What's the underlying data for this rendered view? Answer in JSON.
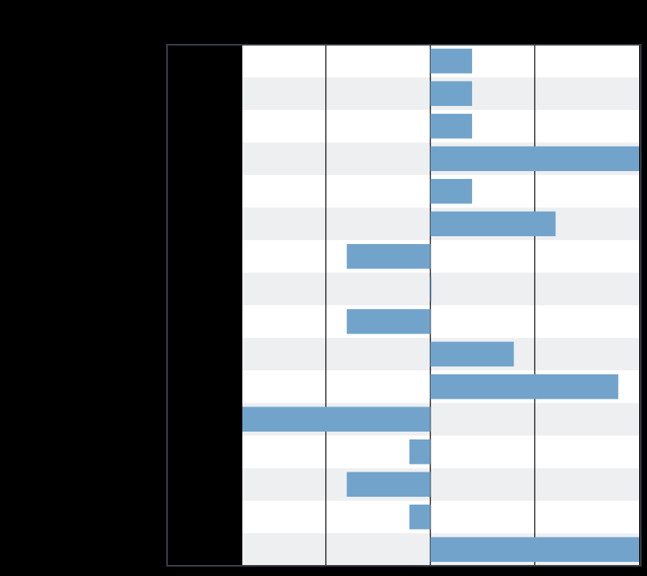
{
  "chart_data": {
    "type": "bar",
    "orientation": "horizontal",
    "title": "",
    "xlabel": "",
    "ylabel": "",
    "xlim": [
      -0.9,
      1.0
    ],
    "categories": [
      "",
      "",
      "",
      "",
      "",
      "",
      "",
      "",
      "",
      "",
      "",
      "",
      "",
      "",
      "",
      ""
    ],
    "values": [
      0.2,
      0.2,
      0.2,
      1.0,
      0.2,
      0.6,
      -0.4,
      0.0,
      -0.4,
      0.4,
      0.9,
      -0.9,
      -0.1,
      -0.4,
      -0.1,
      1.0
    ],
    "grid": true,
    "gridlines_x": [
      -0.5,
      0.0,
      0.5
    ],
    "legend": "none",
    "colors": {
      "bar": "#72a4cb",
      "background": "#000000",
      "plot_stripe_light": "#ffffff",
      "plot_stripe_dark": "#eeeff1",
      "gridline": "#000000",
      "frame": "#3a3f4a"
    }
  }
}
